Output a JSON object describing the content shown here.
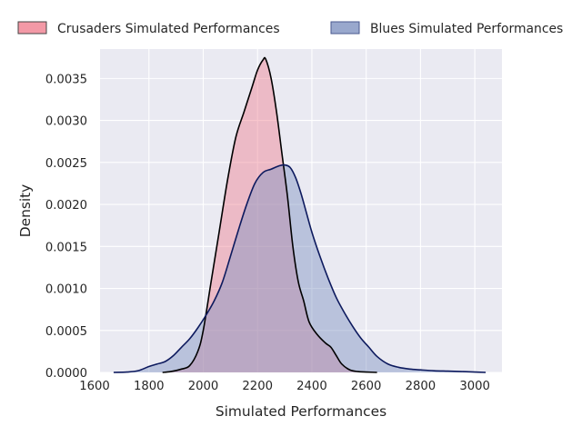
{
  "chart_data": {
    "type": "area",
    "title": "",
    "xlabel": "Simulated Performances",
    "ylabel": "Density",
    "xlim": [
      1620,
      3100
    ],
    "ylim": [
      0,
      0.00385
    ],
    "xticks": [
      1600,
      1800,
      2000,
      2200,
      2400,
      2600,
      2800,
      3000
    ],
    "xtick_labels": [
      "1600",
      "1800",
      "2000",
      "2200",
      "2400",
      "2600",
      "2800",
      "3000"
    ],
    "yticks": [
      0,
      0.0005,
      0.001,
      0.0015,
      0.002,
      0.0025,
      0.003,
      0.0035
    ],
    "ytick_labels": [
      "0.0000",
      "0.0005",
      "0.0010",
      "0.0015",
      "0.0020",
      "0.0025",
      "0.0030",
      "0.0035"
    ],
    "grid": true,
    "legend_position": "top",
    "series": [
      {
        "name": "Crusaders Simulated Performances",
        "fill_color": "#f08090",
        "line_color": "#000000",
        "x": [
          1850,
          1880,
          1920,
          1950,
          1980,
          2000,
          2030,
          2060,
          2090,
          2120,
          2150,
          2180,
          2200,
          2220,
          2230,
          2250,
          2270,
          2290,
          2310,
          2330,
          2350,
          2370,
          2390,
          2420,
          2450,
          2470,
          2490,
          2510,
          2540,
          2570,
          2600,
          2640
        ],
        "y": [
          0,
          1e-05,
          4e-05,
          8e-05,
          0.00025,
          0.0005,
          0.0011,
          0.0017,
          0.0023,
          0.0028,
          0.0031,
          0.0034,
          0.0036,
          0.00372,
          0.00373,
          0.0035,
          0.0031,
          0.0026,
          0.0021,
          0.0015,
          0.00108,
          0.00085,
          0.0006,
          0.00045,
          0.00035,
          0.0003,
          0.0002,
          0.0001,
          3e-05,
          1e-05,
          5e-06,
          0
        ]
      },
      {
        "name": "Blues Simulated Performances",
        "fill_color": "#7f92c0",
        "line_color": "#0d1a5e",
        "x": [
          1670,
          1720,
          1760,
          1800,
          1830,
          1860,
          1890,
          1920,
          1950,
          1980,
          2010,
          2040,
          2070,
          2100,
          2130,
          2160,
          2190,
          2220,
          2250,
          2280,
          2300,
          2320,
          2340,
          2360,
          2380,
          2400,
          2430,
          2460,
          2490,
          2520,
          2550,
          2580,
          2610,
          2640,
          2680,
          2720,
          2760,
          2800,
          2850,
          2900,
          2950,
          3000,
          3040
        ],
        "y": [
          0,
          5e-06,
          2e-05,
          7e-05,
          0.0001,
          0.00013,
          0.0002,
          0.0003,
          0.0004,
          0.00053,
          0.00068,
          0.00085,
          0.00107,
          0.00138,
          0.0017,
          0.002,
          0.00225,
          0.00238,
          0.00242,
          0.00246,
          0.00247,
          0.00244,
          0.00232,
          0.00213,
          0.0019,
          0.00167,
          0.00138,
          0.00112,
          0.00089,
          0.00071,
          0.00055,
          0.00041,
          0.0003,
          0.00019,
          0.0001,
          6e-05,
          4e-05,
          3e-05,
          2e-05,
          1.5e-05,
          1e-05,
          5e-06,
          0
        ]
      }
    ]
  }
}
